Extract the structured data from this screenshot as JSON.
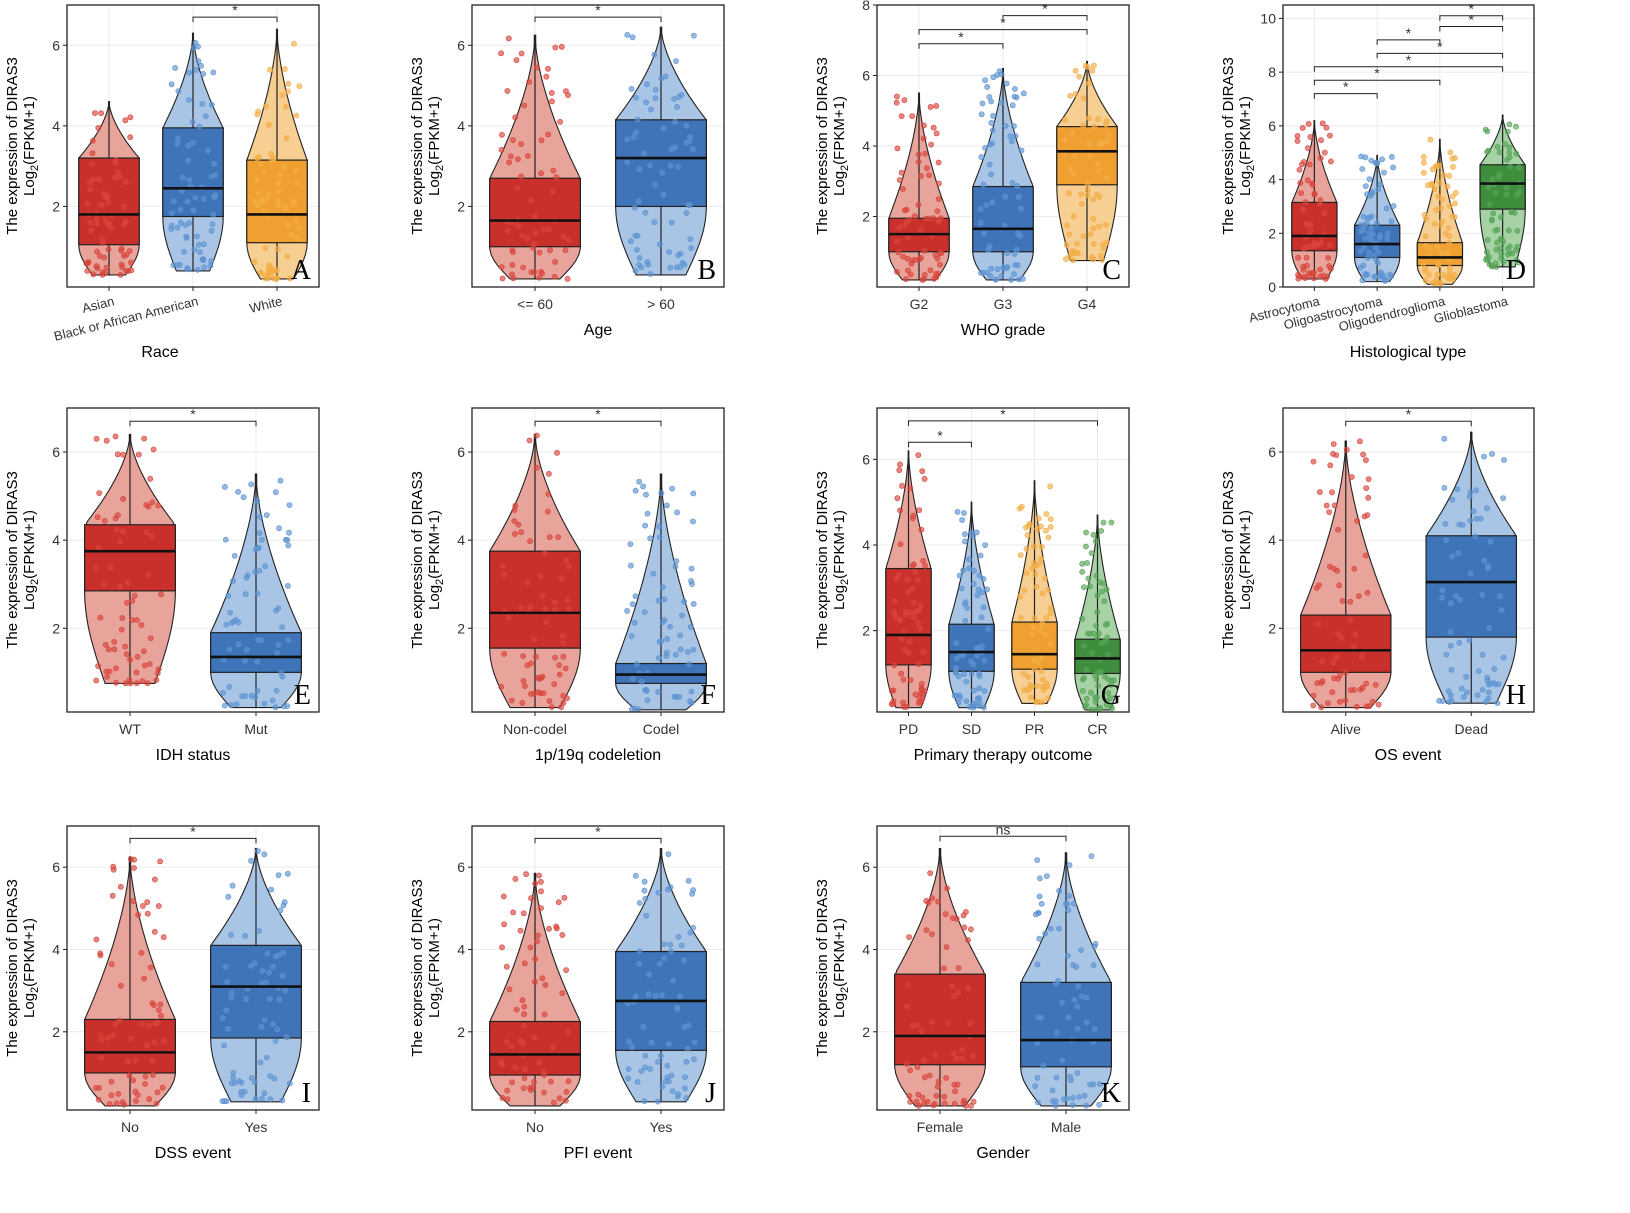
{
  "figure": {
    "ylabel_line1": "The expression of DIRAS3",
    "ylabel_line2_main": "Log",
    "ylabel_line2_sub": "2",
    "ylabel_line2_rest": "(FPKM+1)"
  },
  "colors": {
    "red": "#c9302c",
    "blue": "#3f74b9",
    "orange": "#f0a030",
    "green": "#3e8e3e"
  },
  "chart_data": [
    {
      "id": "A",
      "type": "box-violin",
      "letter": "A",
      "title": "",
      "xlabel": "Race",
      "ylabel": "The expression of DIRAS3 Log2(FPKM+1)",
      "ylim": [
        0,
        7
      ],
      "yticks": [
        2,
        4,
        6
      ],
      "categories": [
        "Asian",
        "Black or African American",
        "White"
      ],
      "rotate_labels": true,
      "groups": [
        {
          "name": "Asian",
          "color": "red",
          "q1": 1.05,
          "median": 1.8,
          "q3": 3.2,
          "min": 0.3,
          "max": 4.6
        },
        {
          "name": "Black or African American",
          "color": "blue",
          "q1": 1.75,
          "median": 2.45,
          "q3": 3.95,
          "min": 0.4,
          "max": 6.3
        },
        {
          "name": "White",
          "color": "orange",
          "q1": 1.1,
          "median": 1.8,
          "q3": 3.15,
          "min": 0.2,
          "max": 6.4
        }
      ],
      "brackets": [
        {
          "from": 1,
          "to": 2,
          "y": 6.7,
          "label": "*"
        }
      ]
    },
    {
      "id": "B",
      "type": "box-violin",
      "letter": "B",
      "title": "",
      "xlabel": "Age",
      "ylabel": "The expression of DIRAS3 Log2(FPKM+1)",
      "ylim": [
        0,
        7
      ],
      "yticks": [
        2,
        4,
        6
      ],
      "categories": [
        "<= 60",
        "> 60"
      ],
      "rotate_labels": false,
      "groups": [
        {
          "name": "<= 60",
          "color": "red",
          "q1": 1.0,
          "median": 1.65,
          "q3": 2.7,
          "min": 0.2,
          "max": 6.25
        },
        {
          "name": "> 60",
          "color": "blue",
          "q1": 2.0,
          "median": 3.2,
          "q3": 4.15,
          "min": 0.3,
          "max": 6.45
        }
      ],
      "brackets": [
        {
          "from": 0,
          "to": 1,
          "y": 6.7,
          "label": "*"
        }
      ]
    },
    {
      "id": "C",
      "type": "box-violin",
      "letter": "C",
      "title": "",
      "xlabel": "WHO grade",
      "ylabel": "The expression of DIRAS3 Log2(FPKM+1)",
      "ylim": [
        0,
        8
      ],
      "yticks": [
        2,
        4,
        6,
        8
      ],
      "categories": [
        "G2",
        "G3",
        "G4"
      ],
      "rotate_labels": false,
      "groups": [
        {
          "name": "G2",
          "color": "red",
          "q1": 1.0,
          "median": 1.5,
          "q3": 1.95,
          "min": 0.2,
          "max": 5.5
        },
        {
          "name": "G3",
          "color": "blue",
          "q1": 1.0,
          "median": 1.65,
          "q3": 2.85,
          "min": 0.2,
          "max": 6.2
        },
        {
          "name": "G4",
          "color": "orange",
          "q1": 2.9,
          "median": 3.85,
          "q3": 4.55,
          "min": 0.75,
          "max": 6.4
        }
      ],
      "brackets": [
        {
          "from": 0,
          "to": 1,
          "y": 6.9,
          "label": "*"
        },
        {
          "from": 0,
          "to": 2,
          "y": 7.3,
          "label": "*"
        },
        {
          "from": 1,
          "to": 2,
          "y": 7.7,
          "label": "*"
        }
      ]
    },
    {
      "id": "D",
      "type": "box-violin",
      "letter": "D",
      "title": "",
      "xlabel": "Histological type",
      "ylabel": "The expression of DIRAS3 Log2(FPKM+1)",
      "ylim": [
        0,
        10.5
      ],
      "yticks": [
        0,
        2,
        4,
        6,
        8,
        10
      ],
      "categories": [
        "Astrocytoma",
        "Oligoastrocytoma",
        "Oligodendroglioma",
        "Glioblastoma"
      ],
      "rotate_labels": true,
      "groups": [
        {
          "name": "Astrocytoma",
          "color": "red",
          "q1": 1.35,
          "median": 1.9,
          "q3": 3.15,
          "min": 0.3,
          "max": 6.2
        },
        {
          "name": "Oligoastrocytoma",
          "color": "blue",
          "q1": 1.1,
          "median": 1.6,
          "q3": 2.3,
          "min": 0.2,
          "max": 4.9
        },
        {
          "name": "Oligodendroglioma",
          "color": "orange",
          "q1": 0.8,
          "median": 1.1,
          "q3": 1.65,
          "min": 0.1,
          "max": 5.5
        },
        {
          "name": "Glioblastoma",
          "color": "green",
          "q1": 2.9,
          "median": 3.85,
          "q3": 4.55,
          "min": 0.75,
          "max": 6.4
        }
      ],
      "brackets": [
        {
          "from": 0,
          "to": 1,
          "y": 7.2,
          "label": "*"
        },
        {
          "from": 0,
          "to": 2,
          "y": 7.7,
          "label": "*"
        },
        {
          "from": 0,
          "to": 3,
          "y": 8.2,
          "label": "*"
        },
        {
          "from": 1,
          "to": 3,
          "y": 8.7,
          "label": "*"
        },
        {
          "from": 1,
          "to": 2,
          "y": 9.2,
          "label": "*"
        },
        {
          "from": 2,
          "to": 3,
          "y": 9.7,
          "label": "*"
        },
        {
          "from": 2,
          "to": 3,
          "y": 10.1,
          "label": "*"
        }
      ]
    },
    {
      "id": "E",
      "type": "box-violin",
      "letter": "E",
      "title": "",
      "xlabel": "IDH status",
      "ylabel": "The expression of DIRAS3 Log2(FPKM+1)",
      "ylim": [
        0.1,
        7
      ],
      "yticks": [
        2,
        4,
        6
      ],
      "categories": [
        "WT",
        "Mut"
      ],
      "rotate_labels": false,
      "groups": [
        {
          "name": "WT",
          "color": "red",
          "q1": 2.85,
          "median": 3.75,
          "q3": 4.35,
          "min": 0.75,
          "max": 6.4
        },
        {
          "name": "Mut",
          "color": "blue",
          "q1": 1.0,
          "median": 1.35,
          "q3": 1.9,
          "min": 0.2,
          "max": 5.5
        }
      ],
      "brackets": [
        {
          "from": 0,
          "to": 1,
          "y": 6.7,
          "label": "*"
        }
      ]
    },
    {
      "id": "F",
      "type": "box-violin",
      "letter": "F",
      "title": "",
      "xlabel": "1p/19q codeletion",
      "ylabel": "The expression of DIRAS3 Log2(FPKM+1)",
      "ylim": [
        0.1,
        7
      ],
      "yticks": [
        2,
        4,
        6
      ],
      "categories": [
        "Non-codel",
        "Codel"
      ],
      "rotate_labels": false,
      "groups": [
        {
          "name": "Non-codel",
          "color": "red",
          "q1": 1.55,
          "median": 2.35,
          "q3": 3.75,
          "min": 0.2,
          "max": 6.4
        },
        {
          "name": "Codel",
          "color": "blue",
          "q1": 0.75,
          "median": 0.95,
          "q3": 1.2,
          "min": 0.15,
          "max": 5.5
        }
      ],
      "brackets": [
        {
          "from": 0,
          "to": 1,
          "y": 6.7,
          "label": "*"
        }
      ]
    },
    {
      "id": "G",
      "type": "box-violin",
      "letter": "G",
      "title": "",
      "xlabel": "Primary therapy outcome",
      "ylabel": "The expression of DIRAS3 Log2(FPKM+1)",
      "ylim": [
        0.1,
        7.2
      ],
      "yticks": [
        2,
        4,
        6
      ],
      "categories": [
        "PD",
        "SD",
        "PR",
        "CR"
      ],
      "rotate_labels": false,
      "groups": [
        {
          "name": "PD",
          "color": "red",
          "q1": 1.2,
          "median": 1.9,
          "q3": 3.45,
          "min": 0.2,
          "max": 6.2
        },
        {
          "name": "SD",
          "color": "blue",
          "q1": 1.05,
          "median": 1.5,
          "q3": 2.15,
          "min": 0.2,
          "max": 5.0
        },
        {
          "name": "PR",
          "color": "orange",
          "q1": 1.1,
          "median": 1.45,
          "q3": 2.2,
          "min": 0.3,
          "max": 5.5
        },
        {
          "name": "CR",
          "color": "green",
          "q1": 1.0,
          "median": 1.35,
          "q3": 1.8,
          "min": 0.15,
          "max": 4.7
        }
      ],
      "brackets": [
        {
          "from": 0,
          "to": 1,
          "y": 6.4,
          "label": "*"
        },
        {
          "from": 0,
          "to": 3,
          "y": 6.9,
          "label": "*"
        }
      ]
    },
    {
      "id": "H",
      "type": "box-violin",
      "letter": "H",
      "title": "",
      "xlabel": "OS event",
      "ylabel": "The expression of DIRAS3 Log2(FPKM+1)",
      "ylim": [
        0.1,
        7
      ],
      "yticks": [
        2,
        4,
        6
      ],
      "categories": [
        "Alive",
        "Dead"
      ],
      "rotate_labels": false,
      "groups": [
        {
          "name": "Alive",
          "color": "red",
          "q1": 1.0,
          "median": 1.5,
          "q3": 2.3,
          "min": 0.2,
          "max": 6.25
        },
        {
          "name": "Dead",
          "color": "blue",
          "q1": 1.8,
          "median": 3.05,
          "q3": 4.1,
          "min": 0.3,
          "max": 6.45
        }
      ],
      "brackets": [
        {
          "from": 0,
          "to": 1,
          "y": 6.7,
          "label": "*"
        }
      ]
    },
    {
      "id": "I",
      "type": "box-violin",
      "letter": "I",
      "title": "",
      "xlabel": "DSS event",
      "ylabel": "The expression of DIRAS3 Log2(FPKM+1)",
      "ylim": [
        0.1,
        7
      ],
      "yticks": [
        2,
        4,
        6
      ],
      "categories": [
        "No",
        "Yes"
      ],
      "rotate_labels": false,
      "groups": [
        {
          "name": "No",
          "color": "red",
          "q1": 1.0,
          "median": 1.5,
          "q3": 2.3,
          "min": 0.2,
          "max": 6.25
        },
        {
          "name": "Yes",
          "color": "blue",
          "q1": 1.85,
          "median": 3.1,
          "q3": 4.1,
          "min": 0.3,
          "max": 6.45
        }
      ],
      "brackets": [
        {
          "from": 0,
          "to": 1,
          "y": 6.7,
          "label": "*"
        }
      ]
    },
    {
      "id": "J",
      "type": "box-violin",
      "letter": "J",
      "title": "",
      "xlabel": "PFI event",
      "ylabel": "The expression of DIRAS3 Log2(FPKM+1)",
      "ylim": [
        0.1,
        7
      ],
      "yticks": [
        2,
        4,
        6
      ],
      "categories": [
        "No",
        "Yes"
      ],
      "rotate_labels": false,
      "groups": [
        {
          "name": "No",
          "color": "red",
          "q1": 0.95,
          "median": 1.45,
          "q3": 2.25,
          "min": 0.2,
          "max": 5.85
        },
        {
          "name": "Yes",
          "color": "blue",
          "q1": 1.55,
          "median": 2.75,
          "q3": 3.95,
          "min": 0.3,
          "max": 6.45
        }
      ],
      "brackets": [
        {
          "from": 0,
          "to": 1,
          "y": 6.7,
          "label": "*"
        }
      ]
    },
    {
      "id": "K",
      "type": "box-violin",
      "letter": "K",
      "title": "",
      "xlabel": "Gender",
      "ylabel": "The expression of DIRAS3 Log2(FPKM+1)",
      "ylim": [
        0.1,
        7
      ],
      "yticks": [
        2,
        4,
        6
      ],
      "categories": [
        "Female",
        "Male"
      ],
      "rotate_labels": false,
      "groups": [
        {
          "name": "Female",
          "color": "red",
          "q1": 1.2,
          "median": 1.9,
          "q3": 3.4,
          "min": 0.2,
          "max": 6.45
        },
        {
          "name": "Male",
          "color": "blue",
          "q1": 1.15,
          "median": 1.8,
          "q3": 3.2,
          "min": 0.2,
          "max": 6.35
        }
      ],
      "brackets": [
        {
          "from": 0,
          "to": 1,
          "y": 6.75,
          "label": "ns"
        }
      ]
    }
  ]
}
